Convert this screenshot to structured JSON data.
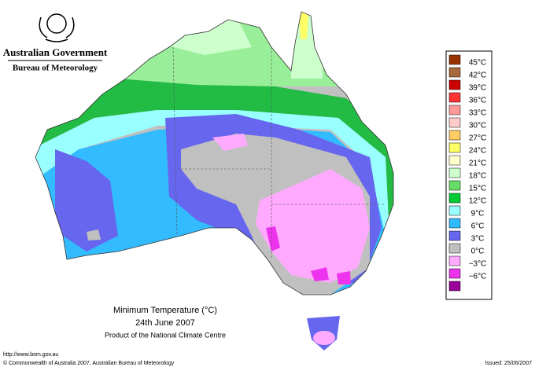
{
  "header": {
    "title": "Australian Government",
    "subtitle": "Bureau of Meteorology"
  },
  "legend": {
    "items": [
      {
        "label": "45°C",
        "color": "#993300"
      },
      {
        "label": "42°C",
        "color": "#a86a3c"
      },
      {
        "label": "39°C",
        "color": "#cc0000"
      },
      {
        "label": "36°C",
        "color": "#ff3333"
      },
      {
        "label": "33°C",
        "color": "#ff9999"
      },
      {
        "label": "30°C",
        "color": "#ffcccc"
      },
      {
        "label": "27°C",
        "color": "#ffcc66"
      },
      {
        "label": "24°C",
        "color": "#ffff66"
      },
      {
        "label": "21°C",
        "color": "#ffffcc"
      },
      {
        "label": "18°C",
        "color": "#ccffcc"
      },
      {
        "label": "15°C",
        "color": "#66dd66"
      },
      {
        "label": "12°C",
        "color": "#00cc33"
      },
      {
        "label": "9°C",
        "color": "#99ffff"
      },
      {
        "label": "6°C",
        "color": "#33bbff"
      },
      {
        "label": "3°C",
        "color": "#6666ee"
      },
      {
        "label": "0°C",
        "color": "#c0c0c0"
      },
      {
        "label": "−3°C",
        "color": "#ffaaff"
      },
      {
        "label": "−6°C",
        "color": "#ee33ee"
      }
    ],
    "bottom_color": "#990099"
  },
  "caption": {
    "title": "Minimum Temperature (°C)",
    "date": "24th June 2007",
    "source": "Product of the National Climate Centre"
  },
  "footer": {
    "url": "http://www.bom.gov.au",
    "copyright": "© Commonwealth of Australia 2007, Australian Bureau of Meteorology",
    "issued": "Issued: 25/06/2007"
  }
}
